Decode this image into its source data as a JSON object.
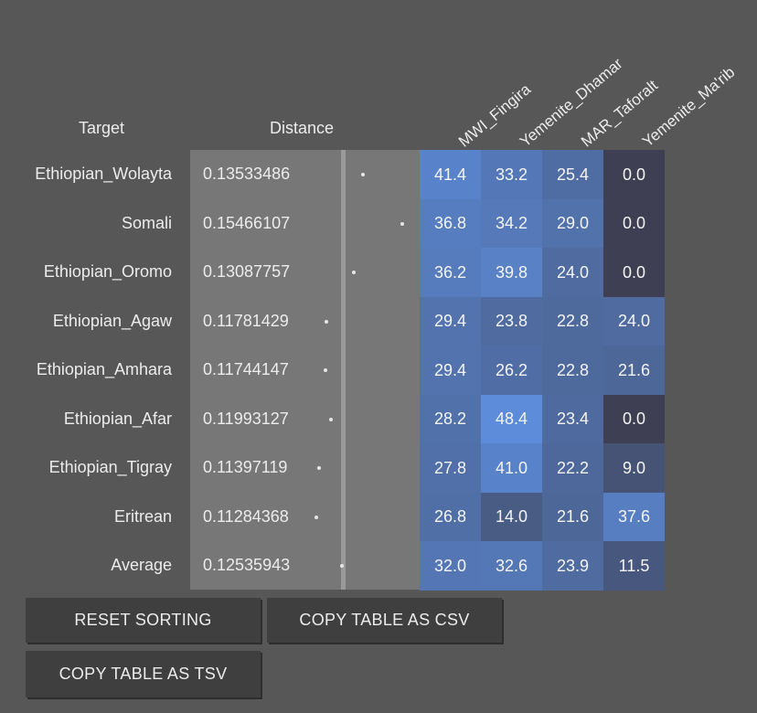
{
  "headers": {
    "target": "Target",
    "distance": "Distance"
  },
  "columns": [
    "MWI_Fingira",
    "Yemenite_Dhamar",
    "MAR_Taforalt",
    "Yemenite_Ma'rib"
  ],
  "rows": [
    {
      "target": "Ethiopian_Wolayta",
      "distance": "0.13533486",
      "values": [
        "41.4",
        "33.2",
        "25.4",
        "0.0"
      ]
    },
    {
      "target": "Somali",
      "distance": "0.15466107",
      "values": [
        "36.8",
        "34.2",
        "29.0",
        "0.0"
      ]
    },
    {
      "target": "Ethiopian_Oromo",
      "distance": "0.13087757",
      "values": [
        "36.2",
        "39.8",
        "24.0",
        "0.0"
      ]
    },
    {
      "target": "Ethiopian_Agaw",
      "distance": "0.11781429",
      "values": [
        "29.4",
        "23.8",
        "22.8",
        "24.0"
      ]
    },
    {
      "target": "Ethiopian_Amhara",
      "distance": "0.11744147",
      "values": [
        "29.4",
        "26.2",
        "22.8",
        "21.6"
      ]
    },
    {
      "target": "Ethiopian_Afar",
      "distance": "0.11993127",
      "values": [
        "28.2",
        "48.4",
        "23.4",
        "0.0"
      ]
    },
    {
      "target": "Ethiopian_Tigray",
      "distance": "0.11397119",
      "values": [
        "27.8",
        "41.0",
        "22.2",
        "9.0"
      ]
    },
    {
      "target": "Eritrean",
      "distance": "0.11284368",
      "values": [
        "26.8",
        "14.0",
        "21.6",
        "37.6"
      ]
    },
    {
      "target": "Average",
      "distance": "0.12535943",
      "values": [
        "32.0",
        "32.6",
        "23.9",
        "11.5"
      ]
    }
  ],
  "buttons": {
    "reset_sorting": "RESET SORTING",
    "copy_csv": "COPY TABLE AS CSV",
    "copy_tsv": "COPY TABLE AS TSV"
  }
}
